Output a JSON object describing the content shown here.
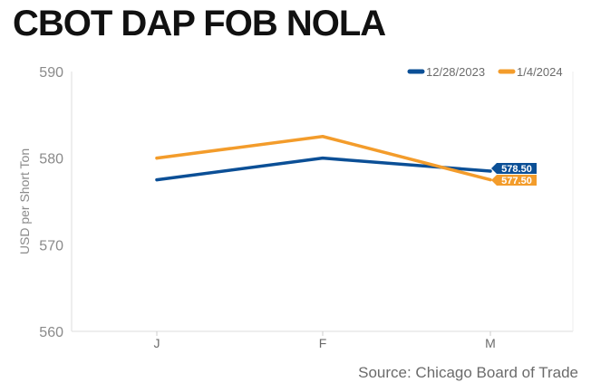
{
  "chart_data": {
    "type": "line",
    "title": "CBOT DAP FOB NOLA",
    "ylabel": "USD per Short Ton",
    "xlabel": "",
    "categories": [
      "J",
      "F",
      "M"
    ],
    "ylim": [
      560,
      590
    ],
    "yticks": [
      560,
      570,
      580,
      590
    ],
    "grid": false,
    "legend": "top-right",
    "series": [
      {
        "name": "12/28/2023",
        "color": "#0b4f96",
        "values": [
          577.5,
          580.0,
          578.5
        ],
        "end_label": "578.50"
      },
      {
        "name": "1/4/2024",
        "color": "#f39c2b",
        "values": [
          580.0,
          582.5,
          577.5
        ],
        "end_label": "577.50"
      }
    ],
    "source": "Source: Chicago Board of Trade"
  }
}
